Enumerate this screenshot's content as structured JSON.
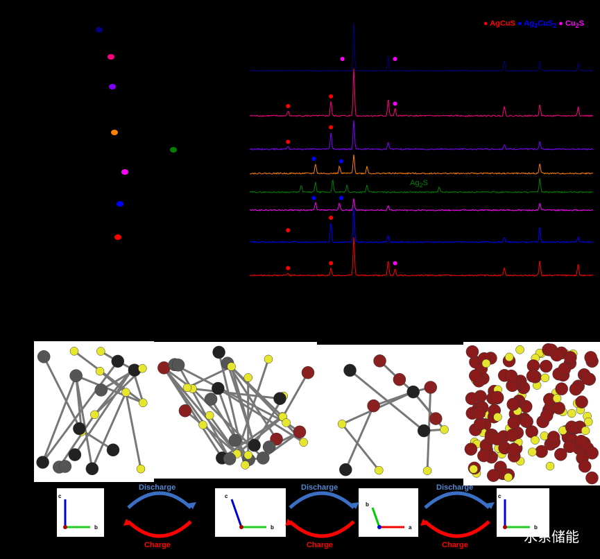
{
  "legend": [
    {
      "label": "AgCuS",
      "color": "#ff0000"
    },
    {
      "label": "Ag3CuS2",
      "main": "Ag",
      "sub": "3",
      "mid": "CuS",
      "sub2": "2",
      "color": "#0000ff"
    },
    {
      "label": "Cu2S",
      "main": "Cu",
      "sub": "2",
      "mid": "S",
      "color": "#ff00ff"
    }
  ],
  "ag2s_label": {
    "main": "Ag",
    "sub": "2",
    "mid": "S",
    "color": "#008000"
  },
  "chart_data": {
    "type": "line",
    "xlabel": "",
    "ylabel": "",
    "series": [
      {
        "color": "#000080",
        "peaks": [
          [
            38.2,
            1
          ],
          [
            44.2,
            0.3
          ],
          [
            64.5,
            0.2
          ],
          [
            70.7,
            0.2
          ],
          [
            77.4,
            0.15
          ]
        ],
        "markers": [
          {
            "x": 36.2,
            "phase": "Cu2S"
          },
          {
            "x": 45.4,
            "phase": "Cu2S"
          }
        ]
      },
      {
        "color": "#ff0080",
        "peaks": [
          [
            26.7,
            0.1
          ],
          [
            34.2,
            0.3
          ],
          [
            38.2,
            1
          ],
          [
            44.2,
            0.35
          ],
          [
            45.4,
            0.15
          ],
          [
            64.5,
            0.2
          ],
          [
            70.7,
            0.25
          ],
          [
            77.4,
            0.2
          ]
        ],
        "markers": [
          {
            "x": 26.7,
            "phase": "AgCuS"
          },
          {
            "x": 34.2,
            "phase": "AgCuS"
          },
          {
            "x": 45.4,
            "phase": "Cu2S"
          }
        ]
      },
      {
        "color": "#8000ff",
        "peaks": [
          [
            26.7,
            0.05
          ],
          [
            34.2,
            0.35
          ],
          [
            38.2,
            0.6
          ],
          [
            44.2,
            0.15
          ],
          [
            64.5,
            0.1
          ],
          [
            70.7,
            0.15
          ]
        ],
        "markers": [
          {
            "x": 26.7,
            "phase": "AgCuS"
          },
          {
            "x": 34.2,
            "phase": "AgCuS"
          }
        ]
      },
      {
        "color": "#ff8000",
        "peaks": [
          [
            31.5,
            0.2
          ],
          [
            35.7,
            0.15
          ],
          [
            38.2,
            0.4
          ],
          [
            40.5,
            0.15
          ],
          [
            70.7,
            0.2
          ]
        ],
        "markers": [
          {
            "x": 31.2,
            "phase": "Ag3CuS2"
          },
          {
            "x": 36,
            "phase": "Ag3CuS2"
          }
        ]
      },
      {
        "color": "#008000",
        "peaks": [
          [
            29,
            0.15
          ],
          [
            31.5,
            0.2
          ],
          [
            34.5,
            0.25
          ],
          [
            37,
            0.15
          ],
          [
            40.5,
            0.15
          ],
          [
            53.1,
            0.1
          ],
          [
            70.7,
            0.3
          ]
        ],
        "markers": []
      },
      {
        "color": "#ff00ff",
        "peaks": [
          [
            31.5,
            0.15
          ],
          [
            35.7,
            0.15
          ],
          [
            38.2,
            0.25
          ],
          [
            44.2,
            0.1
          ],
          [
            70.7,
            0.15
          ]
        ],
        "markers": [
          {
            "x": 31.2,
            "phase": "Ag3CuS2"
          },
          {
            "x": 36,
            "phase": "Ag3CuS2"
          }
        ]
      },
      {
        "color": "#0000ff",
        "peaks": [
          [
            34.2,
            0.4
          ],
          [
            38.2,
            0.7
          ],
          [
            44.2,
            0.15
          ],
          [
            64.5,
            0.1
          ],
          [
            70.7,
            0.3
          ],
          [
            77.4,
            0.1
          ]
        ],
        "markers": [
          {
            "x": 26.7,
            "phase": "AgCuS"
          },
          {
            "x": 34.2,
            "phase": "AgCuS"
          }
        ]
      },
      {
        "color": "#ff0000",
        "peaks": [
          [
            26.7,
            0.05
          ],
          [
            34.2,
            0.15
          ],
          [
            38.2,
            0.8
          ],
          [
            44.2,
            0.3
          ],
          [
            45.4,
            0.15
          ],
          [
            64.5,
            0.15
          ],
          [
            70.7,
            0.3
          ],
          [
            77.4,
            0.25
          ]
        ],
        "markers": [
          {
            "x": 26.7,
            "phase": "AgCuS"
          },
          {
            "x": 34.2,
            "phase": "AgCuS"
          },
          {
            "x": 45.4,
            "phase": "Cu2S"
          }
        ]
      }
    ]
  },
  "axes": [
    {
      "v": "c",
      "h": "b",
      "vcolor": "#0000cc"
    },
    {
      "v": "c",
      "h": "b",
      "vcolor": "#0000cc",
      "tilt": true
    },
    {
      "v": "b",
      "h": "a",
      "vcolor": "#00cc00",
      "red": true
    },
    {
      "v": "c",
      "h": "b",
      "vcolor": "#0000cc"
    }
  ],
  "cycle": {
    "discharge": "Discharge",
    "charge": "Charge"
  },
  "watermark": "水系储能"
}
